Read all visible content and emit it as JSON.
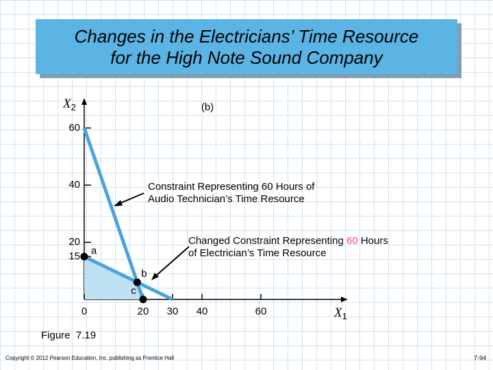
{
  "chart_data": {
    "type": "line",
    "title": [
      "Changes in the Electricians’ Time Resource",
      "for the High Note Sound Company"
    ],
    "subtitle": "(b)",
    "x_label": {
      "base": "X",
      "sub": "1"
    },
    "y_label": {
      "base": "X",
      "sub": "2"
    },
    "xlim": [
      0,
      89
    ],
    "ylim": [
      0,
      69
    ],
    "xticks": [
      0,
      20,
      30,
      40,
      60
    ],
    "yticks": [
      15,
      20,
      40,
      60
    ],
    "series": [
      {
        "color": "#4aa3dc",
        "x": [
          0,
          20
        ],
        "values": [
          60,
          0
        ]
      },
      {
        "color": "#4aa3dc",
        "x": [
          0,
          30
        ],
        "values": [
          15,
          0
        ]
      }
    ],
    "region": {
      "color": "#bfe0f2",
      "x": [
        0,
        0,
        18,
        20
      ],
      "values": [
        0,
        15,
        6,
        0
      ]
    },
    "points": [
      {
        "label": "a",
        "x": 0,
        "y": 15
      },
      {
        "label": "b",
        "x": 18,
        "y": 6
      },
      {
        "label": "c",
        "x": 20,
        "y": 0
      }
    ],
    "annotations": [
      {
        "lines": [
          [
            "Constraint Representing 60 Hours of"
          ],
          [
            "Audio Technician’s Time Resource"
          ]
        ]
      },
      {
        "lines": [
          [
            "Changed Constraint Representing ",
            "60",
            " Hours"
          ],
          [
            "of Electrician’s Time Resource"
          ]
        ]
      }
    ],
    "highlight_color": "#e64ba0"
  },
  "figure_label": "Figure  7.19",
  "footer": {
    "copyright": "Copyright © 2012 Pearson Education, Inc. publishing as Prentice Hall",
    "page": "7-94"
  }
}
